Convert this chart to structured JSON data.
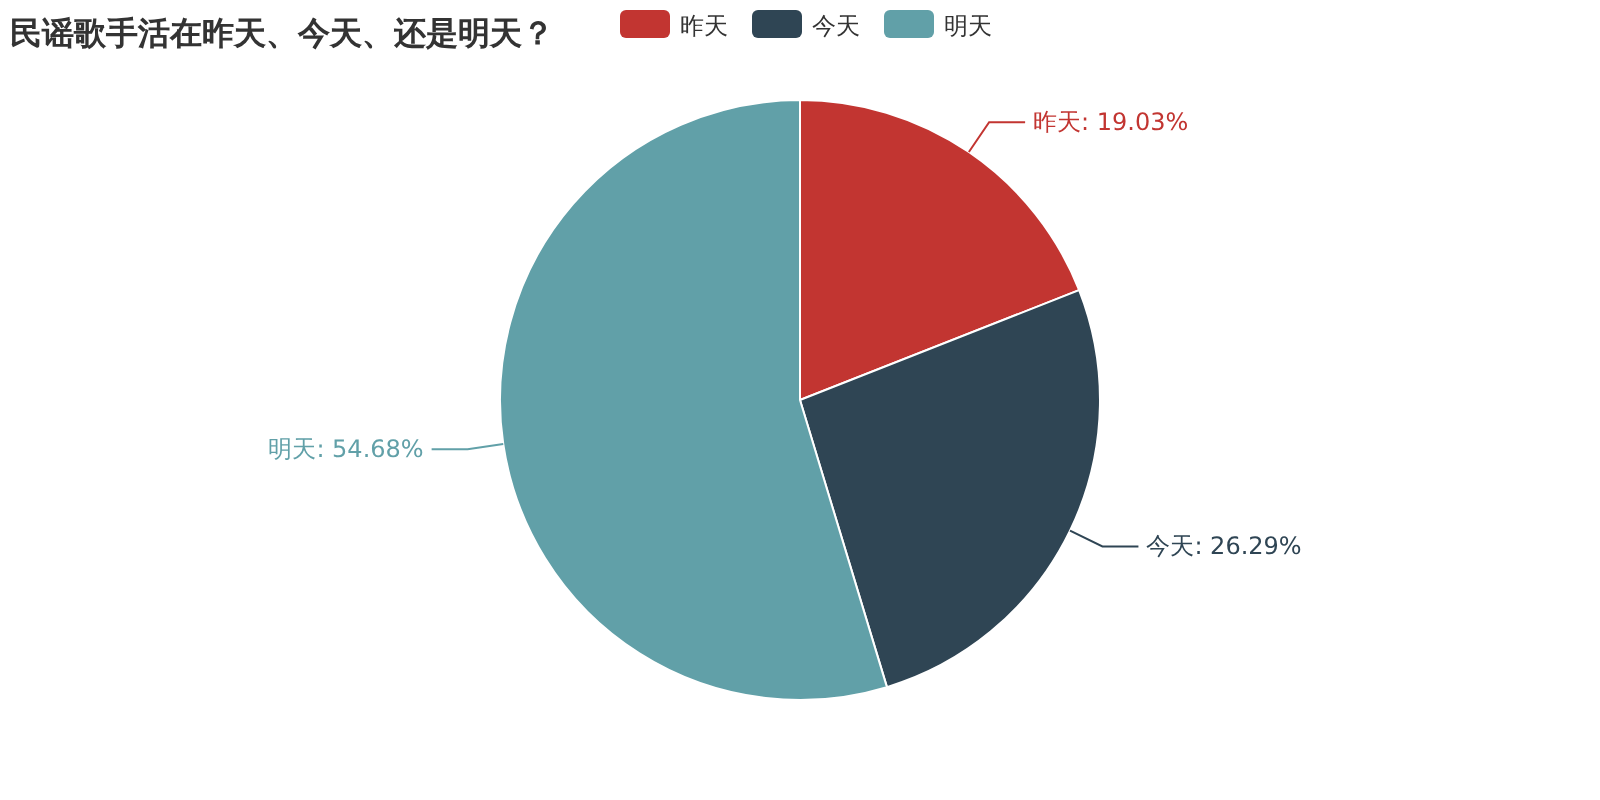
{
  "chart_data": {
    "type": "pie",
    "title": "民谣歌手活在昨天、今天、还是明天？",
    "categories": [
      "昨天",
      "今天",
      "明天"
    ],
    "values": [
      19.03,
      26.29,
      54.68
    ],
    "colors": [
      "#c23531",
      "#2f4554",
      "#61a0a8"
    ],
    "value_labels": [
      "昨天: 19.03%",
      "今天: 26.29%",
      "明天: 54.68%"
    ],
    "legend": "top"
  }
}
